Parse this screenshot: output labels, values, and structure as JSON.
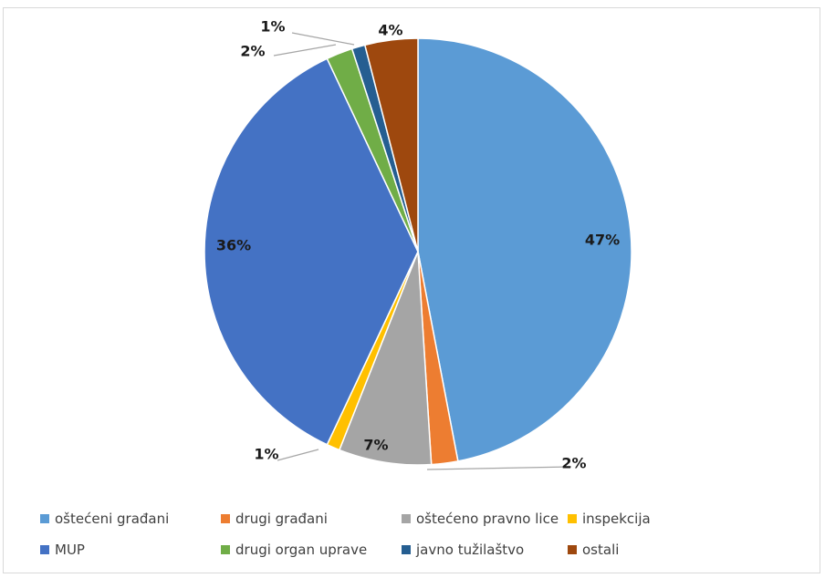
{
  "chart_data": {
    "type": "pie",
    "title": "",
    "slices": [
      {
        "name": "oštećeni građani",
        "value": 47,
        "label": "47%",
        "color": "#5b9bd5"
      },
      {
        "name": "drugi građani",
        "value": 2,
        "label": "2%",
        "color": "#ed7d31"
      },
      {
        "name": "oštećeno pravno lice",
        "value": 7,
        "label": "7%",
        "color": "#a5a5a5"
      },
      {
        "name": "inspekcija",
        "value": 1,
        "label": "1%",
        "color": "#ffc000"
      },
      {
        "name": "MUP",
        "value": 36,
        "label": "36%",
        "color": "#4472c4"
      },
      {
        "name": "drugi organ uprave",
        "value": 2,
        "label": "2%",
        "color": "#70ad47"
      },
      {
        "name": "javno tužilaštvo",
        "value": 1,
        "label": "1%",
        "color": "#255e91"
      },
      {
        "name": "ostali",
        "value": 4,
        "label": "4%",
        "color": "#9e480e"
      }
    ],
    "legend_position": "bottom"
  }
}
